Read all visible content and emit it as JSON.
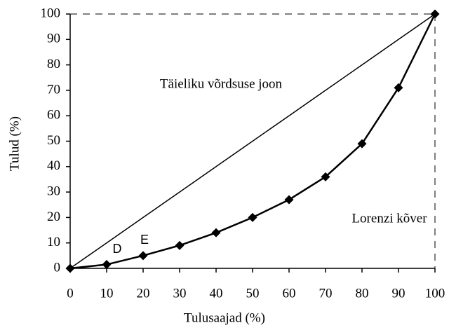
{
  "chart_data": {
    "type": "line",
    "x": [
      0,
      10,
      20,
      30,
      40,
      50,
      60,
      70,
      80,
      90,
      100
    ],
    "series": [
      {
        "name": "Täieliku võrdsuse joon",
        "color": "#000000",
        "marker": "none",
        "values": [
          0,
          10,
          20,
          30,
          40,
          50,
          60,
          70,
          80,
          90,
          100
        ]
      },
      {
        "name": "Lorenzi kõver",
        "color": "#000000",
        "marker": "diamond",
        "values": [
          0,
          1.5,
          5,
          9,
          14,
          20,
          27,
          36,
          49,
          71,
          100
        ]
      }
    ],
    "annotations": [
      "D",
      "E"
    ],
    "xlabel": "Tulusaajad (%)",
    "ylabel": "Tulud (%)",
    "xlim": [
      0,
      100
    ],
    "xticks": [
      0,
      10,
      20,
      30,
      40,
      50,
      60,
      70,
      80,
      90,
      100
    ],
    "ylim": [
      0,
      100
    ],
    "yticks": [
      0,
      10,
      20,
      30,
      40,
      50,
      60,
      70,
      80,
      90,
      100
    ]
  }
}
